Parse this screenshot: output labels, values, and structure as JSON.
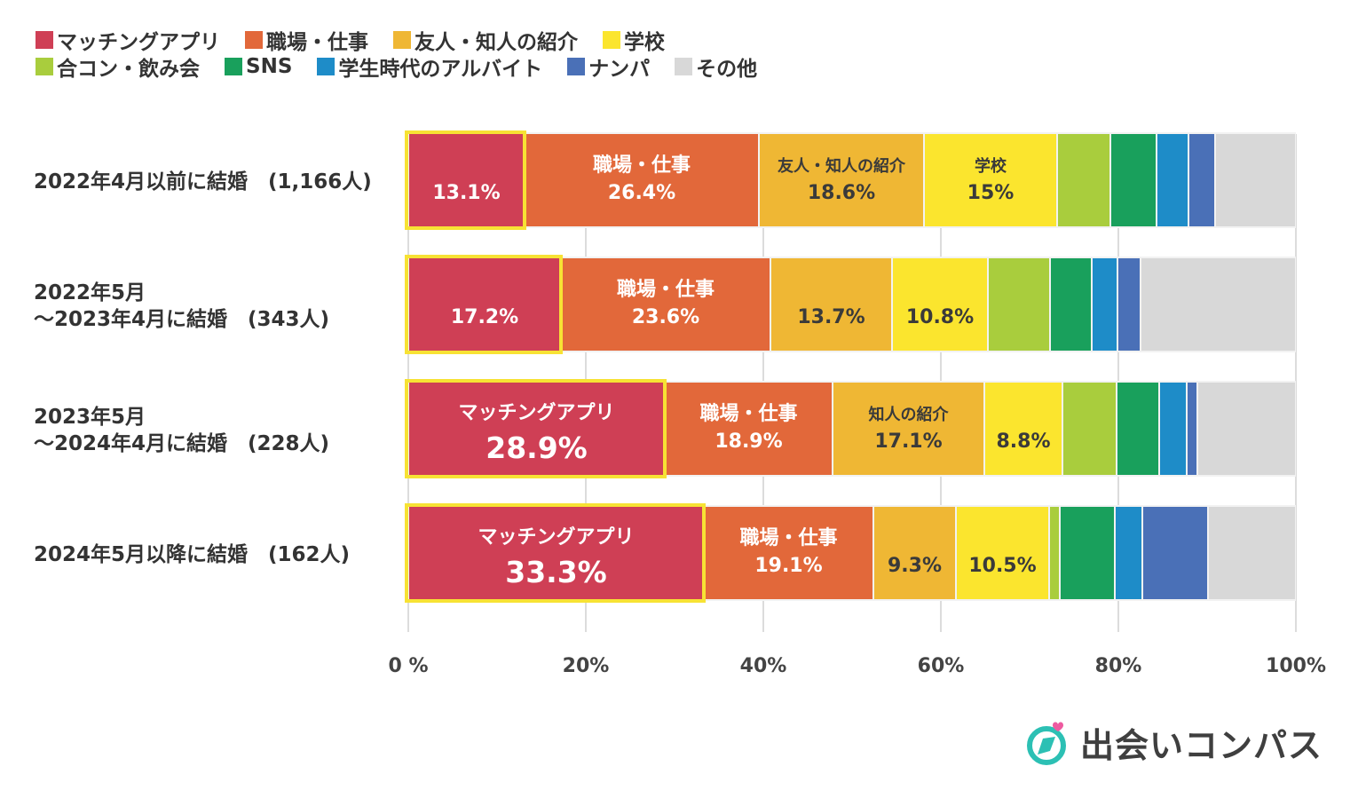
{
  "chart_data": {
    "type": "bar",
    "orientation": "horizontal",
    "stacked": true,
    "title": "",
    "xlabel": "",
    "ylabel": "",
    "xlim": [
      0,
      100
    ],
    "xticks": [
      0,
      20,
      40,
      60,
      80,
      100
    ],
    "xtick_labels": [
      "0 %",
      "20%",
      "40%",
      "60%",
      "80%",
      "100%"
    ],
    "legend_position": "top-left",
    "categories": [
      "2022年4月以前に結婚　(1,166人)",
      "2022年5月\n～2023年4月に結婚　(343人)",
      "2023年5月\n～2024年4月に結婚　(228人)",
      "2024年5月以降に結婚　(162人)"
    ],
    "series": [
      {
        "name": "マッチングアプリ",
        "color": "#cf3f55",
        "values": [
          13.1,
          17.2,
          28.9,
          33.3
        ],
        "labels": [
          "13.1%",
          "17.2%",
          "28.9%",
          "33.3%"
        ],
        "titles": [
          "",
          "",
          "マッチングアプリ",
          "マッチングアプリ"
        ],
        "highlight": true
      },
      {
        "name": "職場・仕事",
        "color": "#e2683a",
        "values": [
          26.4,
          23.6,
          18.9,
          19.1
        ],
        "labels": [
          "26.4%",
          "23.6%",
          "18.9%",
          "19.1%"
        ],
        "titles": [
          "職場・仕事",
          "職場・仕事",
          "職場・仕事",
          "職場・仕事"
        ]
      },
      {
        "name": "友人・知人の紹介",
        "color": "#efb734",
        "values": [
          18.6,
          13.7,
          17.1,
          9.3
        ],
        "labels": [
          "18.6%",
          "13.7%",
          "17.1%",
          "9.3%"
        ],
        "titles": [
          "友人・知人の紹介",
          "",
          "知人の紹介",
          ""
        ]
      },
      {
        "name": "学校",
        "color": "#fbe52e",
        "values": [
          15.0,
          10.8,
          8.8,
          10.5
        ],
        "labels": [
          "15%",
          "10.8%",
          "8.8%",
          "10.5%"
        ],
        "titles": [
          "学校",
          "",
          "",
          ""
        ]
      },
      {
        "name": "合コン・飲み会",
        "color": "#a9cd3d",
        "values": [
          6.0,
          7.0,
          6.1,
          1.2
        ],
        "labels": [
          "",
          "",
          "",
          ""
        ],
        "titles": [
          "",
          "",
          "",
          ""
        ]
      },
      {
        "name": "SNS",
        "color": "#19a05c",
        "values": [
          5.2,
          4.7,
          4.8,
          6.2
        ],
        "labels": [
          "",
          "",
          "",
          ""
        ],
        "titles": [
          "",
          "",
          "",
          ""
        ]
      },
      {
        "name": "学生時代のアルバイト",
        "color": "#1e8cc8",
        "values": [
          3.6,
          2.9,
          3.1,
          3.1
        ],
        "labels": [
          "",
          "",
          "",
          ""
        ],
        "titles": [
          "",
          "",
          "",
          ""
        ]
      },
      {
        "name": "ナンパ",
        "color": "#4a70b7",
        "values": [
          3.0,
          2.6,
          1.2,
          7.4
        ],
        "labels": [
          "",
          "",
          "",
          ""
        ],
        "titles": [
          "",
          "",
          "",
          ""
        ]
      },
      {
        "name": "その他",
        "color": "#d8d8d8",
        "values": [
          9.1,
          17.5,
          11.1,
          9.9
        ],
        "labels": [
          "",
          "",
          "",
          ""
        ],
        "titles": [
          "",
          "",
          "",
          ""
        ]
      }
    ]
  },
  "brand": {
    "name": "出会いコンパス",
    "logo_icon": "compass-heart-icon",
    "icon_color": "#2cc0b4",
    "heart_color": "#ee5aa0"
  }
}
